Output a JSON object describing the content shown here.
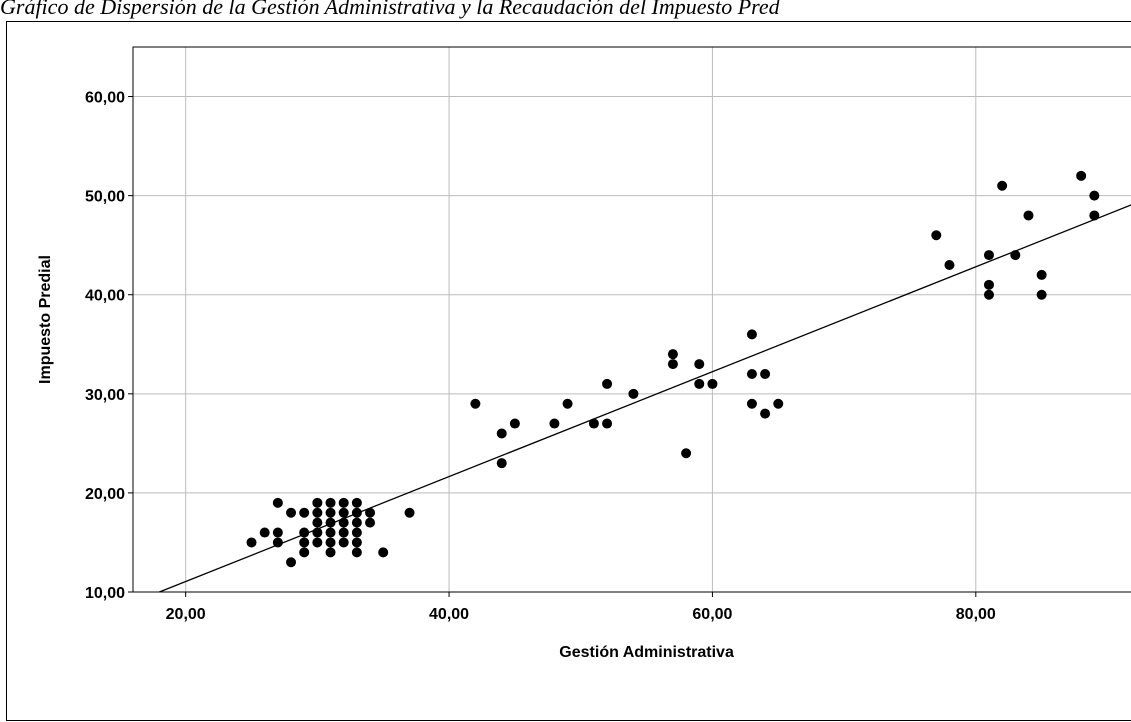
{
  "caption": "Gráfico de Dispersión de la Gestión Administrativa y la Recaudación del Impuesto Pred",
  "chart_data": {
    "type": "scatter",
    "title": "",
    "xlabel": "Gestión Administrativa",
    "ylabel": "Impuesto Predial",
    "xlim": [
      16,
      93
    ],
    "ylim": [
      10,
      65
    ],
    "x_ticks": [
      20,
      40,
      60,
      80
    ],
    "x_tick_labels": [
      "20,00",
      "40,00",
      "60,00",
      "80,00"
    ],
    "y_ticks": [
      10,
      20,
      30,
      40,
      50,
      60
    ],
    "y_tick_labels": [
      "10,00",
      "20,00",
      "30,00",
      "40,00",
      "50,00",
      "60,00"
    ],
    "grid": true,
    "marker_color": "#000000",
    "fit_line": {
      "type": "linear",
      "x": [
        18,
        93
      ],
      "y": [
        10,
        49.7
      ]
    },
    "points": [
      [
        25,
        15
      ],
      [
        26,
        16
      ],
      [
        27,
        15
      ],
      [
        27,
        16
      ],
      [
        27,
        19
      ],
      [
        28,
        13
      ],
      [
        28,
        18
      ],
      [
        29,
        14
      ],
      [
        29,
        15
      ],
      [
        29,
        16
      ],
      [
        29,
        18
      ],
      [
        30,
        15
      ],
      [
        30,
        16
      ],
      [
        30,
        17
      ],
      [
        30,
        18
      ],
      [
        30,
        19
      ],
      [
        31,
        14
      ],
      [
        31,
        15
      ],
      [
        31,
        16
      ],
      [
        31,
        17
      ],
      [
        31,
        18
      ],
      [
        31,
        19
      ],
      [
        32,
        15
      ],
      [
        32,
        16
      ],
      [
        32,
        17
      ],
      [
        32,
        18
      ],
      [
        32,
        19
      ],
      [
        33,
        14
      ],
      [
        33,
        15
      ],
      [
        33,
        16
      ],
      [
        33,
        17
      ],
      [
        33,
        18
      ],
      [
        33,
        19
      ],
      [
        34,
        17
      ],
      [
        34,
        18
      ],
      [
        35,
        14
      ],
      [
        37,
        18
      ],
      [
        42,
        29
      ],
      [
        44,
        23
      ],
      [
        44,
        26
      ],
      [
        45,
        27
      ],
      [
        48,
        27
      ],
      [
        49,
        29
      ],
      [
        51,
        27
      ],
      [
        52,
        27
      ],
      [
        52,
        31
      ],
      [
        54,
        30
      ],
      [
        57,
        33
      ],
      [
        57,
        34
      ],
      [
        58,
        24
      ],
      [
        59,
        31
      ],
      [
        59,
        33
      ],
      [
        60,
        31
      ],
      [
        63,
        29
      ],
      [
        63,
        32
      ],
      [
        63,
        36
      ],
      [
        64,
        28
      ],
      [
        64,
        32
      ],
      [
        65,
        29
      ],
      [
        77,
        46
      ],
      [
        78,
        43
      ],
      [
        81,
        40
      ],
      [
        81,
        41
      ],
      [
        81,
        44
      ],
      [
        82,
        51
      ],
      [
        83,
        44
      ],
      [
        84,
        48
      ],
      [
        85,
        40
      ],
      [
        85,
        42
      ],
      [
        88,
        52
      ],
      [
        89,
        48
      ],
      [
        89,
        50
      ]
    ]
  }
}
